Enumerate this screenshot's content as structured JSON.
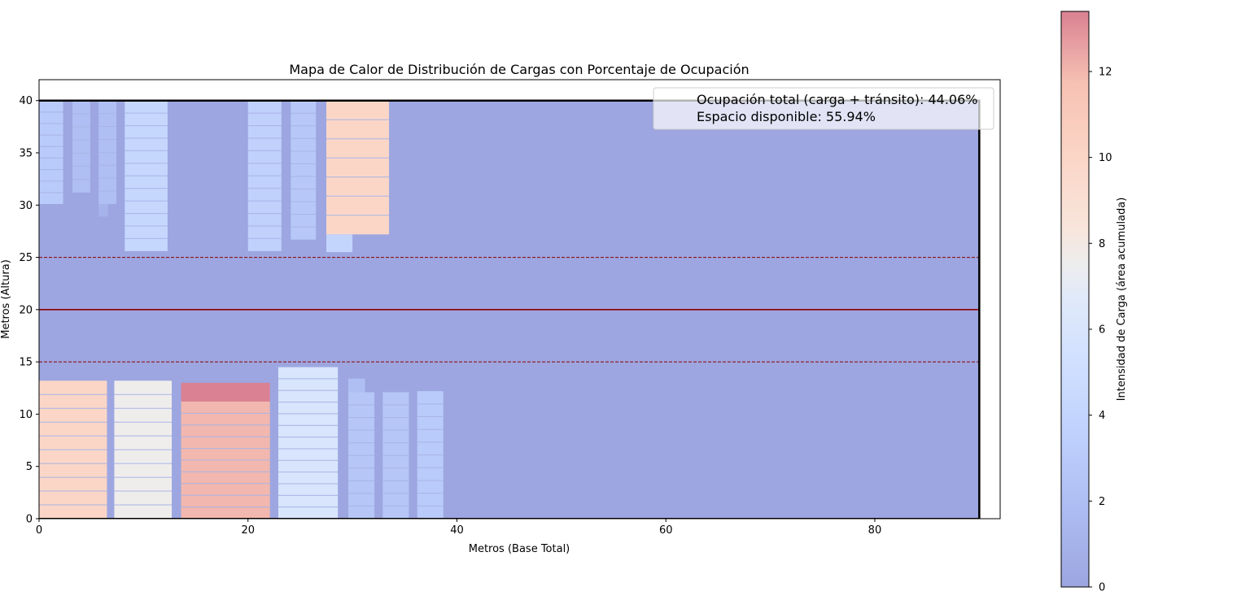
{
  "chart_data": {
    "type": "heatmap",
    "title": "Mapa de Calor de Distribución de Cargas con Porcentaje de Ocupación",
    "xlabel": "Metros (Base Total)",
    "ylabel": "Metros (Altura)",
    "xlim": [
      0,
      92
    ],
    "ylim": [
      0,
      42
    ],
    "xticks": [
      0,
      20,
      40,
      60,
      80
    ],
    "yticks": [
      0,
      5,
      10,
      15,
      20,
      25,
      30,
      35,
      40
    ],
    "grid": false,
    "area": {
      "width": 90,
      "height": 40
    },
    "reference_lines": [
      {
        "y": 20,
        "style": "solid",
        "color": "#8b0000"
      },
      {
        "y": 15,
        "style": "dashed",
        "color": "#8b0000"
      },
      {
        "y": 25,
        "style": "dashed",
        "color": "#8b0000"
      }
    ],
    "legend": {
      "position": "top-right",
      "lines": [
        "Ocupación total (carga + tránsito): 44.06%",
        "Espacio disponible: 55.94%"
      ]
    },
    "colorbar": {
      "label": "Intensidad de Carga (área acumulada)",
      "ticks": [
        0,
        2,
        4,
        6,
        8,
        10,
        12
      ],
      "range": [
        0,
        13.4
      ],
      "colormap": "coolwarm",
      "alpha": 0.5
    },
    "loads": [
      {
        "x": [
          0,
          2.3
        ],
        "y": [
          30.1,
          40
        ],
        "value": 3.0,
        "stripes": 8
      },
      {
        "x": [
          3.2,
          4.9
        ],
        "y": [
          31.2,
          40
        ],
        "value": 2.0,
        "stripes": 6
      },
      {
        "x": [
          5.7,
          7.4
        ],
        "y": [
          30.1,
          40
        ],
        "value": 2.0,
        "stripes": 7
      },
      {
        "x": [
          5.7,
          6.6
        ],
        "y": [
          28.9,
          30.1
        ],
        "value": 1.0,
        "stripes": 0
      },
      {
        "x": [
          8.2,
          12.3
        ],
        "y": [
          25.6,
          40
        ],
        "value": 4.2,
        "stripes": 11
      },
      {
        "x": [
          20,
          23.2
        ],
        "y": [
          25.6,
          40
        ],
        "value": 3.6,
        "stripes": 11
      },
      {
        "x": [
          24.1,
          26.5
        ],
        "y": [
          26.7,
          40
        ],
        "value": 2.8,
        "stripes": 10
      },
      {
        "x": [
          27.5,
          33.5
        ],
        "y": [
          27.2,
          40
        ],
        "value": 10.0,
        "stripes": 6
      },
      {
        "x": [
          27.5,
          30
        ],
        "y": [
          25.5,
          27.2
        ],
        "value": 4.0,
        "stripes": 0
      },
      {
        "x": [
          0,
          6.5
        ],
        "y": [
          0,
          13.2
        ],
        "value": 10.0,
        "stripes": 9
      },
      {
        "x": [
          7.2,
          12.7
        ],
        "y": [
          0,
          13.2
        ],
        "value": 7.6,
        "stripes": 9
      },
      {
        "x": [
          13.6,
          22.1
        ],
        "y": [
          11.2,
          13
        ],
        "value": 13.4,
        "stripes": 0
      },
      {
        "x": [
          13.6,
          22.1
        ],
        "y": [
          0,
          11.2
        ],
        "value": 12.0,
        "stripes": 9
      },
      {
        "x": [
          22.9,
          28.6
        ],
        "y": [
          0,
          14.5
        ],
        "value": 6.0,
        "stripes": 12
      },
      {
        "x": [
          29.6,
          31.2
        ],
        "y": [
          12.1,
          13.4
        ],
        "value": 2.0,
        "stripes": 0
      },
      {
        "x": [
          29.6,
          32.1
        ],
        "y": [
          0,
          12.1
        ],
        "value": 2.6,
        "stripes": 9
      },
      {
        "x": [
          32.9,
          35.4
        ],
        "y": [
          0,
          12.1
        ],
        "value": 2.6,
        "stripes": 9
      },
      {
        "x": [
          36.2,
          38.7
        ],
        "y": [
          0,
          12.2
        ],
        "value": 3.0,
        "stripes": 9
      }
    ]
  }
}
